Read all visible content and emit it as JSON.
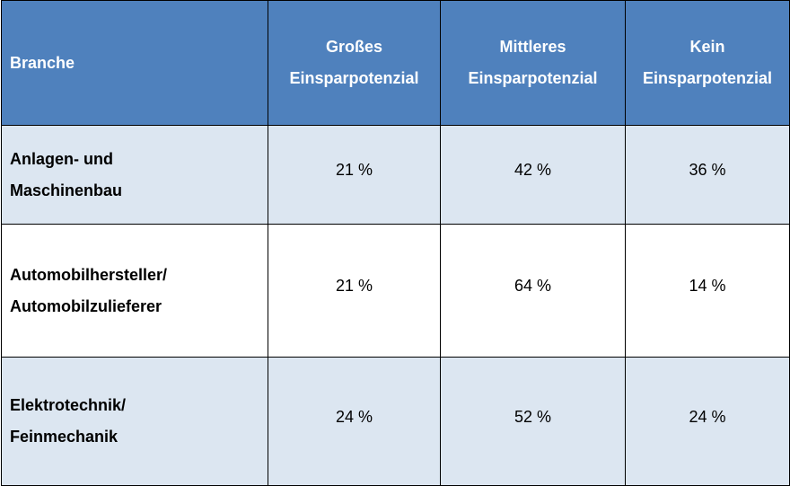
{
  "chart_data": {
    "type": "table",
    "columns": [
      "Branche",
      "Großes Einsparpotenzial",
      "Mittleres Einsparpotenzial",
      "Kein Einsparpotenzial"
    ],
    "header_lines": [
      [
        "Branche"
      ],
      [
        "Großes",
        "Einsparpotenzial"
      ],
      [
        "Mittleres",
        "Einsparpotenzial"
      ],
      [
        "Kein",
        "Einsparpotenzial"
      ]
    ],
    "rows": [
      {
        "label_lines": [
          "Anlagen- und",
          "Maschinenbau"
        ],
        "values": [
          "21 %",
          "42 %",
          "36 %"
        ]
      },
      {
        "label_lines": [
          "Automobilhersteller/",
          "Automobilzulieferer"
        ],
        "values": [
          "21 %",
          "64 %",
          "14 %"
        ]
      },
      {
        "label_lines": [
          "Elektrotechnik/",
          "Feinmechanik"
        ],
        "values": [
          "24 %",
          "52 %",
          "24 %"
        ]
      }
    ]
  },
  "colors": {
    "header_background": "#4f81bd",
    "header_text": "#ffffff",
    "band_row": "#dce6f1",
    "plain_row": "#ffffff",
    "border": "#000000"
  }
}
